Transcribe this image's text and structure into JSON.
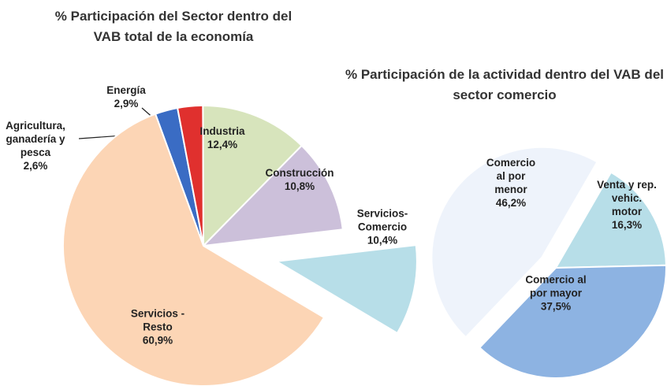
{
  "chart_data": [
    {
      "type": "pie",
      "title": "% Participación del Sector dentro del VAB total de la economía",
      "categories": [
        "Agricultura, ganadería y pesca",
        "Energía",
        "Industria",
        "Construcción",
        "Servicios-Comercio",
        "Servicios - Resto"
      ],
      "values": [
        2.6,
        2.9,
        12.4,
        10.8,
        10.4,
        60.9
      ],
      "value_labels": [
        "2,6%",
        "2,9%",
        "12,4%",
        "10,8%",
        "10,4%",
        "60,9%"
      ],
      "colors": [
        "#3a6cc4",
        "#e0302e",
        "#d7e4bc",
        "#ccc0da",
        "#b7dee8",
        "#fcd5b5"
      ]
    },
    {
      "type": "pie",
      "title": "% Participación de la actividad dentro del VAB del sector comercio",
      "categories": [
        "Venta y rep. vehic. motor",
        "Comercio al por mayor",
        "Comercio al por menor"
      ],
      "values": [
        16.3,
        37.5,
        46.2
      ],
      "value_labels": [
        "16,3%",
        "37,5%",
        "46,2%"
      ],
      "colors": [
        "#b7dee8",
        "#8db3e2",
        "#eef3fb"
      ]
    }
  ]
}
